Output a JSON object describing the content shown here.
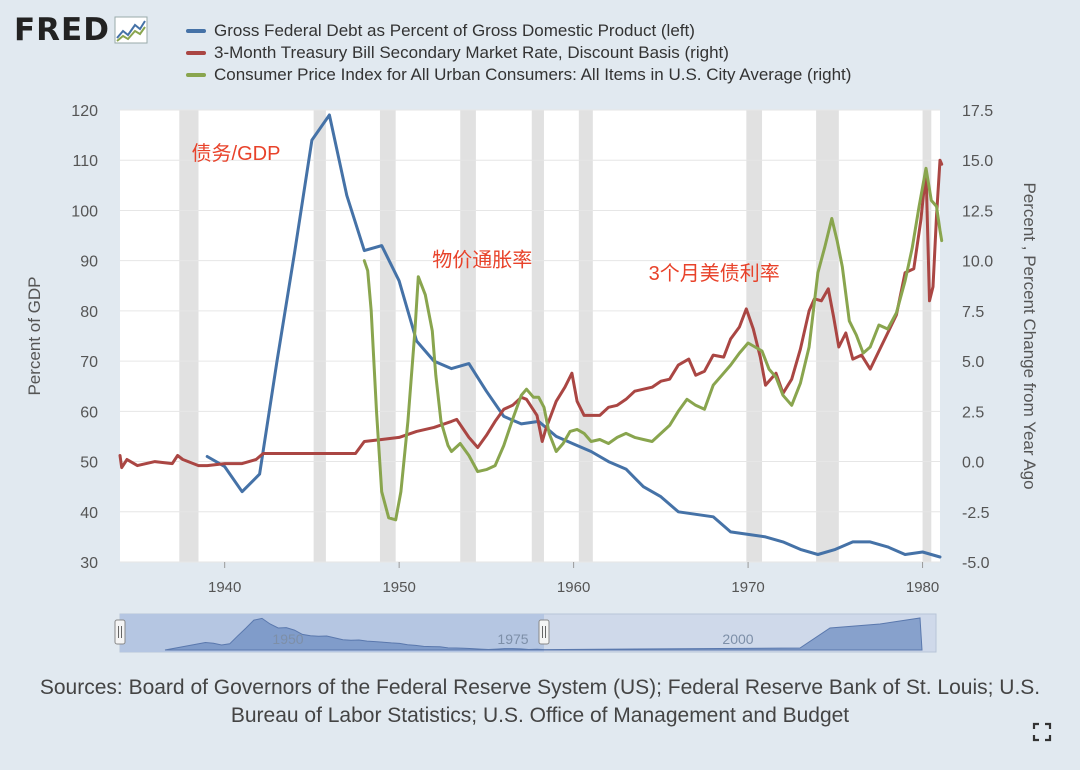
{
  "logo": {
    "text": "FRED"
  },
  "legend": [
    {
      "label": "Gross Federal Debt as Percent of Gross Domestic Product (left)",
      "color": "#4572a7"
    },
    {
      "label": "3-Month Treasury Bill Secondary Market Rate, Discount Basis (right)",
      "color": "#aa4643"
    },
    {
      "label": "Consumer Price Index for All Urban Consumers: All Items in U.S. City Average (right)",
      "color": "#89a54e"
    }
  ],
  "chart_data": {
    "type": "line",
    "x_range": [
      1934,
      1981
    ],
    "x_ticks": [
      1940,
      1950,
      1960,
      1970,
      1980
    ],
    "left_axis": {
      "label": "Percent of GDP",
      "range": [
        30,
        120
      ],
      "ticks": [
        30,
        40,
        50,
        60,
        70,
        80,
        90,
        100,
        110,
        120
      ]
    },
    "right_axis": {
      "label": "Percent , Percent Change from Year Ago",
      "range": [
        -5.0,
        17.5
      ],
      "ticks": [
        "-5.0",
        "-2.5",
        "0.0",
        "2.5",
        "5.0",
        "7.5",
        "10.0",
        "12.5",
        "15.0",
        "17.5"
      ]
    },
    "recessions": [
      [
        1937.4,
        1938.5
      ],
      [
        1945.1,
        1945.8
      ],
      [
        1948.9,
        1949.8
      ],
      [
        1953.5,
        1954.4
      ],
      [
        1957.6,
        1958.3
      ],
      [
        1960.3,
        1961.1
      ],
      [
        1969.9,
        1970.8
      ],
      [
        1973.9,
        1975.2
      ],
      [
        1980.0,
        1980.5
      ]
    ],
    "series": [
      {
        "name": "Gross Federal Debt as Percent of Gross Domestic Product",
        "axis": "left",
        "color": "#4572a7",
        "x": [
          1939,
          1940,
          1941,
          1942,
          1943,
          1944,
          1945,
          1946,
          1947,
          1948,
          1949,
          1950,
          1951,
          1952,
          1953,
          1954,
          1955,
          1956,
          1957,
          1958,
          1959,
          1960,
          1961,
          1962,
          1963,
          1964,
          1965,
          1966,
          1967,
          1968,
          1969,
          1970,
          1971,
          1972,
          1973,
          1974,
          1975,
          1976,
          1977,
          1978,
          1979,
          1980,
          1981
        ],
        "values": [
          51,
          49,
          44,
          47.5,
          70,
          91.5,
          114,
          119,
          103,
          92,
          93,
          86,
          74,
          70,
          68.5,
          69.5,
          64,
          59,
          57.5,
          58,
          55,
          53.5,
          52,
          50,
          48.5,
          45,
          43,
          40,
          39.5,
          39,
          36,
          35.5,
          35,
          34,
          32.5,
          31.5,
          32.5,
          34,
          34,
          33,
          31.5,
          32,
          31
        ]
      },
      {
        "name": "3-Month Treasury Bill Secondary Market Rate, Discount Basis",
        "axis": "right",
        "color": "#aa4643",
        "x": [
          1934,
          1934.1,
          1934.4,
          1935,
          1936,
          1937,
          1937.3,
          1937.6,
          1938.5,
          1939,
          1940,
          1941,
          1941.8,
          1942.2,
          1947.5,
          1948,
          1949,
          1950,
          1951,
          1952,
          1953,
          1953.3,
          1954,
          1954.5,
          1955,
          1955.5,
          1956,
          1956.5,
          1957,
          1957.3,
          1957.9,
          1958.2,
          1958.4,
          1959,
          1959.5,
          1959.9,
          1960.2,
          1960.6,
          1961,
          1961.5,
          1962,
          1962.5,
          1963,
          1963.5,
          1964,
          1964.5,
          1965,
          1965.5,
          1966,
          1966.6,
          1967,
          1967.5,
          1968,
          1968.6,
          1969,
          1969.5,
          1969.9,
          1970.3,
          1970.7,
          1971,
          1971.6,
          1972,
          1972.5,
          1973,
          1973.5,
          1973.8,
          1974.2,
          1974.6,
          1974.9,
          1975.2,
          1975.6,
          1976,
          1976.5,
          1977,
          1977.5,
          1978,
          1978.5,
          1979,
          1979.5,
          1979.9,
          1980.2,
          1980.4,
          1980.6,
          1980.8,
          1981,
          1981.1
        ],
        "values": [
          0.3,
          -0.3,
          0.1,
          -0.2,
          0,
          -0.1,
          0.3,
          0.1,
          -0.2,
          -0.2,
          -0.1,
          -0.1,
          0.1,
          0.4,
          0.4,
          1.0,
          1.1,
          1.2,
          1.5,
          1.7,
          2.0,
          2.1,
          1.2,
          0.7,
          1.3,
          2.0,
          2.6,
          2.8,
          3.2,
          3.1,
          2.3,
          1.0,
          1.6,
          3.0,
          3.7,
          4.4,
          3.0,
          2.3,
          2.3,
          2.3,
          2.7,
          2.8,
          3.1,
          3.5,
          3.6,
          3.7,
          4.0,
          4.1,
          4.8,
          5.1,
          4.3,
          4.5,
          5.3,
          5.2,
          6.1,
          6.7,
          7.6,
          6.6,
          5.2,
          3.8,
          4.4,
          3.4,
          4.1,
          5.6,
          7.5,
          8.1,
          8.0,
          8.6,
          7.2,
          5.7,
          6.4,
          5.1,
          5.3,
          4.6,
          5.5,
          6.4,
          7.3,
          9.4,
          9.6,
          12.0,
          14.5,
          8.0,
          8.7,
          12.2,
          15.0,
          14.8
        ]
      },
      {
        "name": "Consumer Price Index for All Urban Consumers: All Items in U.S. City Average",
        "axis": "right",
        "color": "#89a54e",
        "x": [
          1948,
          1948.2,
          1948.4,
          1948.7,
          1949,
          1949.4,
          1949.8,
          1950.1,
          1950.5,
          1950.9,
          1951.1,
          1951.5,
          1951.9,
          1952.1,
          1952.4,
          1952.8,
          1953,
          1953.5,
          1954,
          1954.5,
          1955,
          1955.5,
          1956,
          1956.5,
          1957,
          1957.3,
          1957.7,
          1958,
          1958.3,
          1958.6,
          1959,
          1959.4,
          1959.8,
          1960.2,
          1960.6,
          1961,
          1961.5,
          1962,
          1962.5,
          1963,
          1963.5,
          1964,
          1964.5,
          1965,
          1965.5,
          1966,
          1966.5,
          1967,
          1967.5,
          1968,
          1968.5,
          1969,
          1969.5,
          1970,
          1970.4,
          1970.8,
          1971.2,
          1971.6,
          1972,
          1972.5,
          1973,
          1973.5,
          1974,
          1974.4,
          1974.8,
          1975.1,
          1975.4,
          1975.8,
          1976.2,
          1976.6,
          1977,
          1977.5,
          1978,
          1978.5,
          1979,
          1979.4,
          1979.8,
          1980.2,
          1980.5,
          1980.8,
          1981,
          1981.1
        ],
        "values": [
          10,
          9.5,
          7.5,
          2.5,
          -1.5,
          -2.8,
          -2.9,
          -1.5,
          2.0,
          6.5,
          9.2,
          8.3,
          6.5,
          4.3,
          2.0,
          0.8,
          0.5,
          0.9,
          0.3,
          -0.5,
          -0.4,
          -0.2,
          0.8,
          2.1,
          3.3,
          3.6,
          3.2,
          3.2,
          2.7,
          1.4,
          0.5,
          0.9,
          1.5,
          1.6,
          1.4,
          1.0,
          1.1,
          0.9,
          1.2,
          1.4,
          1.2,
          1.1,
          1.0,
          1.4,
          1.8,
          2.5,
          3.1,
          2.8,
          2.6,
          3.8,
          4.3,
          4.8,
          5.4,
          5.9,
          5.7,
          5.5,
          4.6,
          4.2,
          3.3,
          2.8,
          3.9,
          5.7,
          9.4,
          10.7,
          12.1,
          11.0,
          9.7,
          7.0,
          6.3,
          5.4,
          5.7,
          6.8,
          6.6,
          7.4,
          9.0,
          10.6,
          12.7,
          14.6,
          13.0,
          12.7,
          11.5,
          11.0
        ]
      }
    ],
    "annotations": [
      {
        "text": "债务/GDP",
        "x": 1938.1,
        "y_left": 110,
        "color": "#e8422a"
      },
      {
        "text": "物价通胀率",
        "x": 1951.9,
        "y_left": 88.8,
        "color": "#e8422a"
      },
      {
        "text": "3个月美债利率",
        "x": 1964.3,
        "y_left": 86.2,
        "color": "#e8422a"
      }
    ],
    "navigator": {
      "labels": [
        "1950",
        "1975",
        "2000"
      ]
    }
  },
  "sources": "Sources: Board of Governors of the Federal Reserve System (US); Federal Reserve Bank of St. Louis; U.S. Bureau of Labor Statistics; U.S. Office of Management and Budget",
  "icons": {
    "expand": "expand-icon",
    "logo_chart": "line-chart-icon"
  }
}
